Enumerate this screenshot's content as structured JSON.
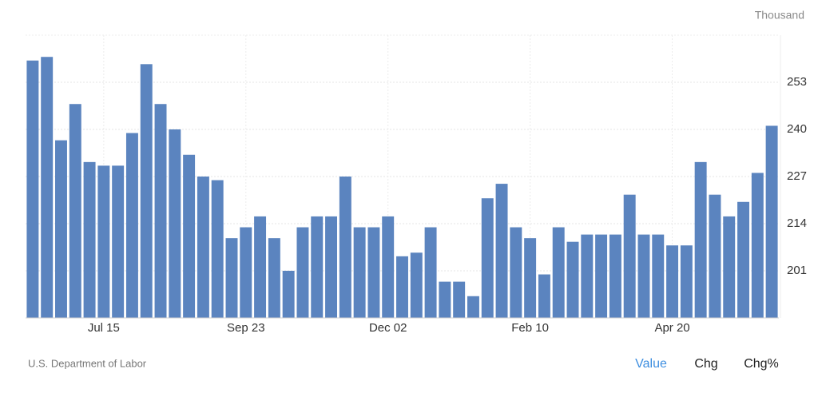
{
  "chart_data": {
    "type": "bar",
    "unit_label": "Thousand",
    "categories": [
      null,
      null,
      null,
      null,
      null,
      "Jul 15",
      null,
      null,
      null,
      null,
      null,
      null,
      null,
      null,
      null,
      "Sep 23",
      null,
      null,
      null,
      null,
      null,
      null,
      null,
      null,
      null,
      "Dec 02",
      null,
      null,
      null,
      null,
      null,
      null,
      null,
      null,
      null,
      "Feb 10",
      null,
      null,
      null,
      null,
      null,
      null,
      null,
      null,
      null,
      "Apr 20",
      null,
      null,
      null,
      null,
      null,
      null,
      null
    ],
    "values": [
      259,
      260,
      237,
      247,
      231,
      230,
      230,
      239,
      258,
      247,
      240,
      233,
      227,
      226,
      210,
      213,
      216,
      210,
      201,
      213,
      216,
      216,
      227,
      213,
      213,
      216,
      205,
      206,
      213,
      198,
      198,
      194,
      221,
      225,
      213,
      210,
      200,
      213,
      209,
      211,
      211,
      211,
      222,
      211,
      211,
      208,
      208,
      231,
      222,
      216,
      220,
      228,
      241
    ],
    "color": "#5b84bf",
    "ylim": [
      188,
      266
    ],
    "yticks": [
      201,
      214,
      227,
      240,
      253
    ],
    "grid": true
  },
  "source": "U.S. Department of Labor",
  "tabs": [
    "Value",
    "Chg",
    "Chg%"
  ]
}
